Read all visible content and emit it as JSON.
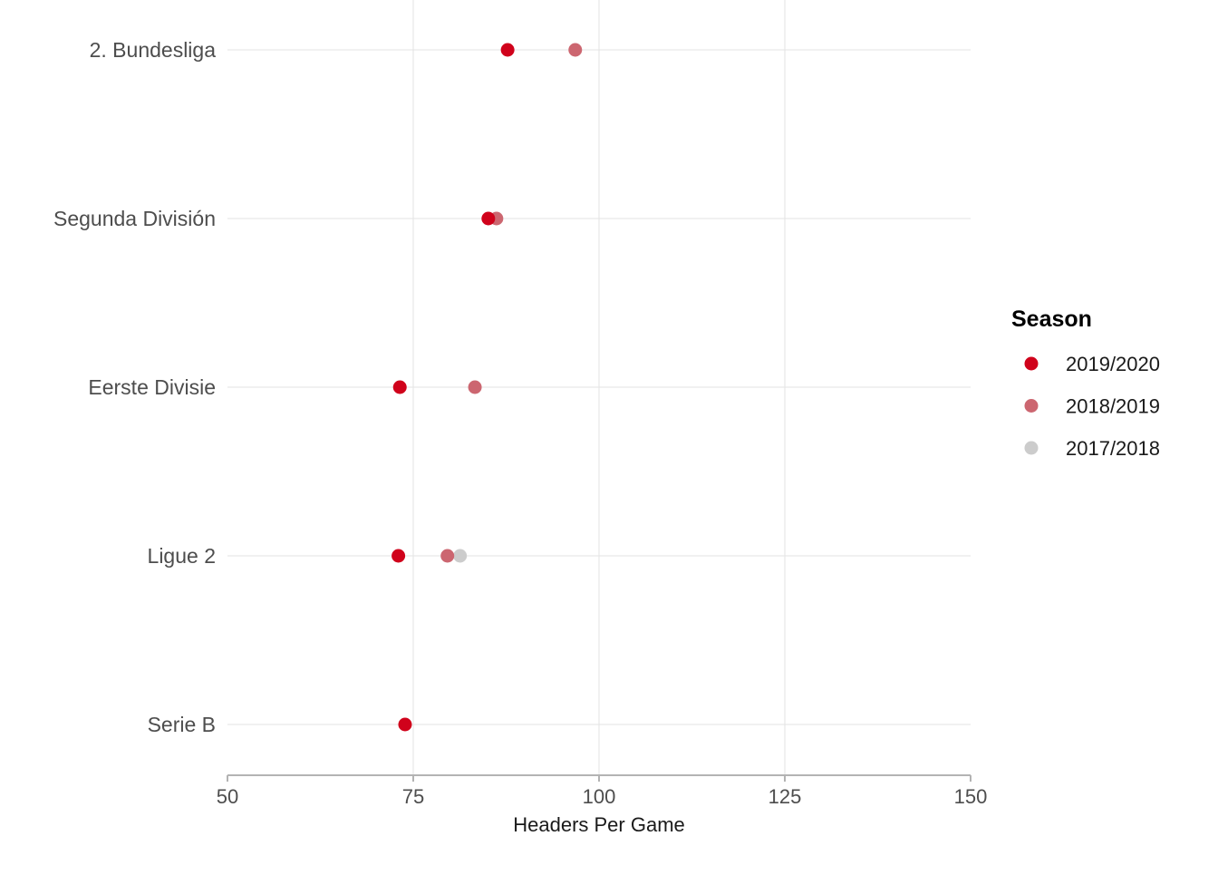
{
  "chart_data": {
    "type": "scatter",
    "title": "",
    "xlabel": "Headers Per Game",
    "ylabel": "",
    "xlim": [
      50,
      150
    ],
    "x_ticks": [
      50,
      75,
      100,
      125,
      150
    ],
    "x_tick_labels": [
      "50",
      "75",
      "100",
      "125",
      "150"
    ],
    "categories": [
      "2. Bundesliga",
      "Segunda División",
      "Eerste Divisie",
      "Ligue 2",
      "Serie B"
    ],
    "grid": true,
    "legend": {
      "title": "Season",
      "position": "right"
    },
    "series": [
      {
        "name": "2019/2020",
        "color": "#d0021b",
        "values": [
          87.7,
          85.1,
          73.2,
          73.0,
          73.9
        ]
      },
      {
        "name": "2018/2019",
        "color": "#cc6670",
        "values": [
          96.8,
          86.2,
          83.3,
          79.6,
          null
        ]
      },
      {
        "name": "2017/2018",
        "color": "#cccccc",
        "values": [
          null,
          null,
          null,
          81.3,
          null
        ]
      }
    ]
  }
}
